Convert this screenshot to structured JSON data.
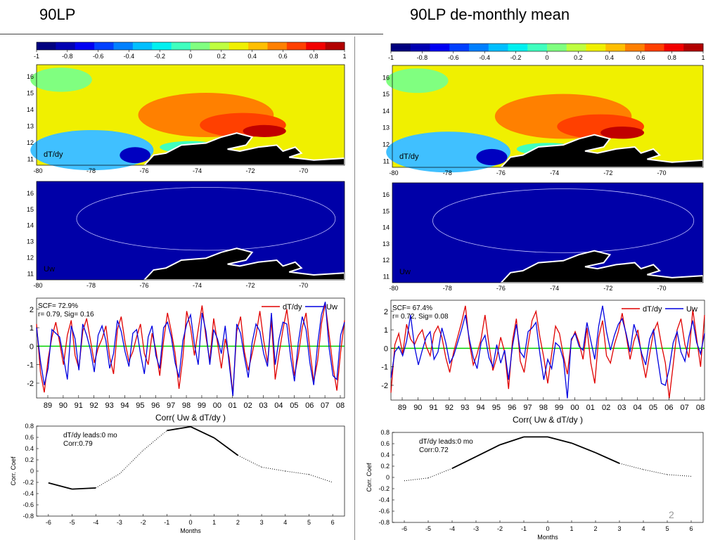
{
  "titles": {
    "left": "90LP",
    "right": "90LP   de-monthly mean"
  },
  "colorbar": {
    "ticks": [
      "-1",
      "-0.8",
      "-0.6",
      "-0.4",
      "-0.2",
      "0",
      "0.2",
      "0.4",
      "0.6",
      "0.8",
      "1"
    ],
    "colors": [
      "#00007f",
      "#0000b2",
      "#0000f2",
      "#0040ff",
      "#0080ff",
      "#00bfff",
      "#00f0f0",
      "#40ffbf",
      "#80ff80",
      "#bfff40",
      "#f0f000",
      "#ffbf00",
      "#ff8000",
      "#ff4000",
      "#f20000",
      "#b20000"
    ]
  },
  "maps": {
    "x_ticks": [
      "-80",
      "-78",
      "-76",
      "-74",
      "-72",
      "-70"
    ],
    "y_ticks": [
      "16",
      "15",
      "14",
      "13",
      "12",
      "11"
    ],
    "top_label": "dT/dy",
    "bottom_label": "Uw"
  },
  "left": {
    "timeseries": {
      "scf": "SCF= 72.9%",
      "rsig": "r= 0.79, Sig= 0.16",
      "y_ticks": [
        "2",
        "1",
        "0",
        "-1",
        "-2"
      ],
      "x_ticks": [
        "89",
        "90",
        "91",
        "92",
        "93",
        "94",
        "95",
        "96",
        "97",
        "98",
        "99",
        "00",
        "01",
        "02",
        "03",
        "04",
        "05",
        "06",
        "07",
        "08"
      ],
      "title": "Corr( Uw & dT/dy )",
      "legend": [
        "dT/dy",
        "Uw"
      ]
    },
    "lag": {
      "annotation1": "dT/dy leads:0 mo",
      "annotation2": "Corr:0.79",
      "y_ticks": [
        "0.8",
        "0.6",
        "0.4",
        "0.2",
        "0",
        "-0.2",
        "-0.4",
        "-0.6",
        "-0.8"
      ],
      "x_ticks": [
        "-6",
        "-5",
        "-4",
        "-3",
        "-2",
        "-1",
        "0",
        "1",
        "2",
        "3",
        "4",
        "5",
        "6"
      ],
      "ylabel": "Corr. Coef",
      "xlabel": "Months"
    }
  },
  "right": {
    "timeseries": {
      "scf": "SCF= 67.4%",
      "rsig": "r= 0.72, Sig= 0.08",
      "y_ticks": [
        "2",
        "1",
        "0",
        "-1",
        "-2"
      ],
      "x_ticks": [
        "89",
        "90",
        "91",
        "92",
        "93",
        "94",
        "95",
        "96",
        "97",
        "98",
        "99",
        "00",
        "01",
        "02",
        "03",
        "04",
        "05",
        "06",
        "07",
        "08"
      ],
      "title": "Corr( Uw & dT/dy )",
      "legend": [
        "dT/dy",
        "Uw"
      ]
    },
    "lag": {
      "annotation1": "dT/dy leads:0 mo",
      "annotation2": "Corr:0.72",
      "y_ticks": [
        "0.8",
        "0.6",
        "0.4",
        "0.2",
        "0",
        "-0.2",
        "-0.4",
        "-0.6",
        "-0.8"
      ],
      "x_ticks": [
        "-6",
        "-5",
        "-4",
        "-3",
        "-2",
        "-1",
        "0",
        "1",
        "2",
        "3",
        "4",
        "5",
        "6"
      ],
      "ylabel": "Corr. Coef",
      "xlabel": "Months"
    }
  },
  "page_number": "2",
  "chart_data": [
    {
      "type": "line",
      "panel": "left-lag-correlation",
      "x": [
        -6,
        -5,
        -4,
        -3,
        -2,
        -1,
        0,
        1,
        2,
        3,
        4,
        5,
        6
      ],
      "series": [
        {
          "values": [
            -0.21,
            -0.32,
            -0.3,
            -0.05,
            0.37,
            0.72,
            0.79,
            0.59,
            0.28,
            0.07,
            0.0,
            -0.06,
            -0.2
          ]
        }
      ],
      "significant": [
        true,
        true,
        true,
        false,
        false,
        true,
        true,
        true,
        true,
        false,
        false,
        false,
        false
      ],
      "xlabel": "Months",
      "ylabel": "Corr. Coef",
      "ylim": [
        -0.8,
        0.8
      ]
    },
    {
      "type": "line",
      "panel": "right-lag-correlation",
      "x": [
        -6,
        -5,
        -4,
        -3,
        -2,
        -1,
        0,
        1,
        2,
        3,
        4,
        5,
        6
      ],
      "series": [
        {
          "values": [
            -0.06,
            -0.01,
            0.16,
            0.37,
            0.58,
            0.72,
            0.72,
            0.61,
            0.44,
            0.25,
            0.14,
            0.05,
            0.02
          ]
        }
      ],
      "significant": [
        false,
        false,
        true,
        true,
        true,
        true,
        true,
        true,
        true,
        true,
        false,
        false,
        false
      ],
      "xlabel": "Months",
      "ylabel": "Corr. Coef",
      "ylim": [
        -0.8,
        0.8
      ]
    },
    {
      "type": "line",
      "panel": "left-timeseries",
      "title": "Corr( Uw & dT/dy )",
      "x_range": [
        1988.5,
        2008.8
      ],
      "ylim": [
        -2.8,
        2.6
      ],
      "series": [
        {
          "name": "dT/dy",
          "color": "#e00000",
          "values": [
            1.2,
            -1.4,
            -2.5,
            -0.7,
            0.5,
            1.3,
            0.2,
            -1.0,
            0.6,
            1.4,
            -0.5,
            -1.2,
            0.8,
            1.5,
            0.3,
            -0.9,
            -0.1,
            0.4,
            1.1,
            -0.6,
            -1.5,
            0.9,
            1.6,
            0.2,
            -0.8,
            -0.3,
            0.5,
            1.2,
            -0.4,
            -1.0,
            0.7,
            -0.2,
            -1.6,
            0.3,
            1.8,
            0.8,
            -0.4,
            -2.3,
            -0.6,
            1.9,
            1.0,
            -0.5,
            0.9,
            2.2,
            0.5,
            -0.8,
            1.5,
            0.2,
            -1.2,
            0.4,
            -0.6,
            -2.6,
            0.8,
            1.6,
            -0.3,
            -1.3,
            -0.4,
            0.6,
            1.9,
            0.3,
            -0.9,
            1.4,
            -1.8,
            -0.4,
            0.9,
            2.0,
            0.3,
            -1.6,
            -0.5,
            1.0,
            1.8,
            -0.2,
            -1.9,
            -0.8,
            1.2,
            2.3,
            0.6,
            -1.1,
            -2.4,
            -0.3,
            1.4
          ]
        },
        {
          "name": "Uw",
          "color": "#0000e0",
          "values": [
            1.0,
            -0.8,
            -2.1,
            -1.2,
            0.9,
            0.7,
            0.5,
            -0.6,
            -1.8,
            1.1,
            0.4,
            -1.3,
            1.2,
            0.6,
            -0.2,
            -1.4,
            0.6,
            1.1,
            0.3,
            -1.2,
            -0.4,
            1.4,
            0.8,
            -0.3,
            -1.1,
            0.7,
            0.9,
            -0.4,
            -1.5,
            0.5,
            1.1,
            -0.5,
            -1.2,
            1.0,
            1.3,
            0.5,
            -0.9,
            -1.7,
            0.3,
            1.2,
            1.7,
            0.1,
            -1.0,
            1.8,
            0.8,
            -1.0,
            0.9,
            0.4,
            -0.4,
            1.1,
            -0.9,
            -2.7,
            1.2,
            0.7,
            -0.6,
            -1.7,
            0.2,
            1.2,
            0.8,
            -0.4,
            -1.1,
            1.8,
            -1.0,
            0.4,
            1.3,
            1.2,
            -0.6,
            -1.9,
            0.2,
            1.6,
            0.9,
            -0.9,
            -2.1,
            0.1,
            1.7,
            2.4,
            -0.1,
            -1.6,
            -1.8,
            0.6,
            1.3
          ]
        }
      ]
    },
    {
      "type": "line",
      "panel": "right-timeseries",
      "title": "Corr( Uw & dT/dy )",
      "x_range": [
        1988.5,
        2008.8
      ],
      "ylim": [
        -2.8,
        2.6
      ],
      "series": [
        {
          "name": "dT/dy",
          "color": "#e00000",
          "values": [
            -2.4,
            0.2,
            0.8,
            -0.3,
            1.3,
            0.5,
            0.2,
            0.7,
            1.0,
            0.1,
            -0.4,
            0.8,
            1.2,
            0.6,
            -0.5,
            -1.3,
            -0.2,
            0.6,
            1.4,
            2.3,
            0.3,
            -0.9,
            -0.3,
            0.5,
            1.8,
            0.2,
            -1.2,
            -0.5,
            0.6,
            -0.2,
            -2.2,
            0.4,
            1.6,
            -0.7,
            -1.3,
            0.2,
            1.5,
            2.0,
            0.6,
            -0.5,
            -1.9,
            -0.3,
            1.2,
            0.8,
            -0.4,
            -1.4,
            0.4,
            0.9,
            0.3,
            -0.6,
            1.1,
            -0.8,
            -1.9,
            0.6,
            1.5,
            -0.4,
            -0.8,
            0.2,
            0.9,
            1.9,
            0.7,
            -0.6,
            0.4,
            1.0,
            -0.5,
            -1.6,
            -0.3,
            0.9,
            1.4,
            0.2,
            -0.8,
            -2.7,
            -0.9,
            1.0,
            1.6,
            0.2,
            -0.5,
            2.1,
            0.5,
            -1.0,
            1.8
          ]
        },
        {
          "name": "Uw",
          "color": "#0000e0",
          "values": [
            -1.6,
            -0.2,
            0.1,
            -0.4,
            0.4,
            1.8,
            0.1,
            -0.9,
            -0.1,
            0.6,
            0.9,
            -0.6,
            -0.2,
            1.1,
            0.3,
            -0.8,
            -0.4,
            0.3,
            1.0,
            1.8,
            0.5,
            -0.5,
            -1.1,
            0.3,
            0.7,
            -0.5,
            -1.0,
            0.2,
            -0.8,
            -0.1,
            -1.7,
            0.1,
            1.3,
            -0.2,
            -0.5,
            0.9,
            1.1,
            1.4,
            -0.3,
            -1.7,
            -0.6,
            -1.1,
            0.3,
            0.1,
            -0.6,
            -2.7,
            0.5,
            0.8,
            0.1,
            -0.1,
            1.4,
            0.4,
            -0.6,
            1.2,
            2.3,
            0.9,
            -0.1,
            0.7,
            1.3,
            1.6,
            0.8,
            -0.2,
            1.3,
            0.6,
            -0.3,
            -0.9,
            0.5,
            1.0,
            -0.5,
            -1.9,
            -2.0,
            -1.1,
            0.3,
            0.9,
            -0.2,
            -0.7,
            0.6,
            1.5,
            0.3,
            -0.3,
            0.8
          ]
        }
      ]
    }
  ]
}
